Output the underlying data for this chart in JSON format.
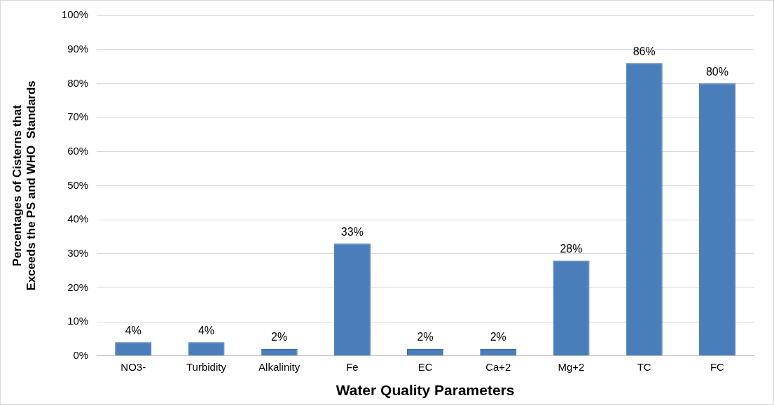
{
  "chart_data": {
    "type": "bar",
    "categories": [
      "NO3-",
      "Turbidity",
      "Alkalinity",
      "Fe",
      "EC",
      "Ca+2",
      "Mg+2",
      "TC",
      "FC"
    ],
    "values": [
      4,
      4,
      2,
      33,
      2,
      2,
      28,
      86,
      80
    ],
    "value_labels": [
      "4%",
      "4%",
      "2%",
      "33%",
      "2%",
      "2%",
      "28%",
      "86%",
      "80%"
    ],
    "color": "#4a7ebb",
    "xlabel": "Water Quality Parameters",
    "ylabel": "Percentages of Cisterns that Exceeds the PS and WHO  Standards",
    "ylim": [
      0,
      100
    ],
    "yticks": [
      {
        "value": 0,
        "label": "0%"
      },
      {
        "value": 10,
        "label": "10%"
      },
      {
        "value": 20,
        "label": "20%"
      },
      {
        "value": 30,
        "label": "30%"
      },
      {
        "value": 40,
        "label": "40%"
      },
      {
        "value": 50,
        "label": "50%"
      },
      {
        "value": 60,
        "label": "60%"
      },
      {
        "value": 70,
        "label": "70%"
      },
      {
        "value": 80,
        "label": "80%"
      },
      {
        "value": 90,
        "label": "90%"
      },
      {
        "value": 100,
        "label": "100%"
      }
    ],
    "grid": "y"
  }
}
